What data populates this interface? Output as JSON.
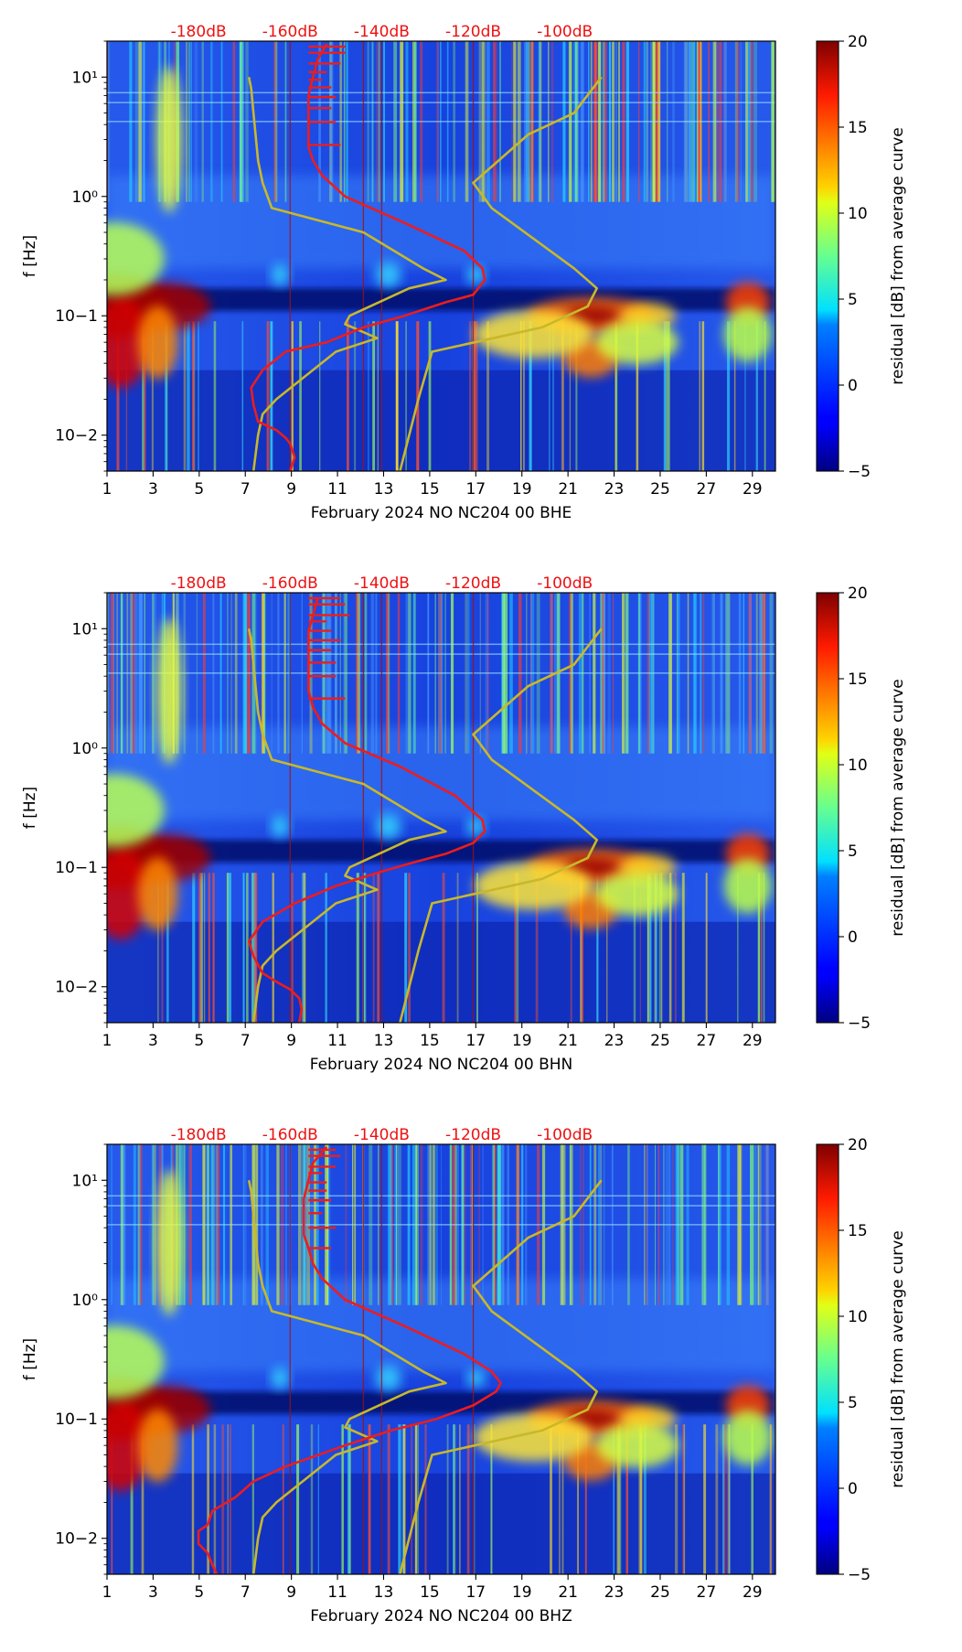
{
  "colors": {
    "median_curve": "#ee1c1c",
    "noise_model": "#c8b82a",
    "db_axis_label": "#ee1111",
    "axis": "#000000"
  },
  "chart_data": [
    {
      "type": "heatmap",
      "channel": "BHE",
      "xlabel": "February 2024 NO NC204 00 BHE",
      "ylabel": "f [Hz]",
      "x_ticks": [
        "1",
        "3",
        "5",
        "7",
        "9",
        "11",
        "13",
        "15",
        "17",
        "19",
        "21",
        "23",
        "25",
        "27",
        "29"
      ],
      "y_ticks": [
        "10−2",
        "10−1",
        "10⁰",
        "10¹"
      ],
      "xlim": [
        1,
        30
      ],
      "ylim": [
        0.005,
        20
      ],
      "yscale": "log",
      "top_ticks": [
        "-180dB",
        "-160dB",
        "-140dB",
        "-120dB",
        "-100dB"
      ],
      "colorbar": {
        "label": "residual [dB] from average curve",
        "range": [
          -5,
          20
        ],
        "ticks": [
          "20",
          "15",
          "10",
          "5",
          "0",
          "−5"
        ]
      },
      "median_curve_db": [
        [
          -160,
          0.005
        ],
        [
          -159,
          0.0065
        ],
        [
          -160,
          0.0085
        ],
        [
          -161,
          0.0095
        ],
        [
          -163,
          0.011
        ],
        [
          -167,
          0.013
        ],
        [
          -168,
          0.018
        ],
        [
          -168.5,
          0.025
        ],
        [
          -166,
          0.035
        ],
        [
          -161,
          0.05
        ],
        [
          -152,
          0.06
        ],
        [
          -144,
          0.08
        ],
        [
          -135,
          0.1
        ],
        [
          -126,
          0.13
        ],
        [
          -120,
          0.15
        ],
        [
          -117.5,
          0.2
        ],
        [
          -118,
          0.25
        ],
        [
          -122,
          0.35
        ],
        [
          -135,
          0.6
        ],
        [
          -148,
          1.0
        ],
        [
          -153,
          1.5
        ],
        [
          -155,
          2.0
        ],
        [
          -156,
          2.6
        ],
        [
          -156,
          3.5
        ],
        [
          -156,
          5.0
        ],
        [
          -156,
          7.0
        ],
        [
          -155,
          10
        ],
        [
          -154,
          14
        ],
        [
          -152,
          19
        ]
      ],
      "median_spikes": [
        [
          2.7,
          -149
        ],
        [
          4.2,
          -150
        ],
        [
          5.5,
          -151
        ],
        [
          6.8,
          -150
        ],
        [
          8.2,
          -151
        ],
        [
          9.5,
          -153
        ],
        [
          11,
          -152
        ],
        [
          13,
          -149
        ],
        [
          16,
          -148
        ],
        [
          18,
          -148
        ]
      ]
    },
    {
      "type": "heatmap",
      "channel": "BHN",
      "xlabel": "February 2024 NO NC204 00 BHN",
      "ylabel": "f [Hz]",
      "x_ticks": [
        "1",
        "3",
        "5",
        "7",
        "9",
        "11",
        "13",
        "15",
        "17",
        "19",
        "21",
        "23",
        "25",
        "27",
        "29"
      ],
      "y_ticks": [
        "10−2",
        "10−1",
        "10⁰",
        "10¹"
      ],
      "xlim": [
        1,
        30
      ],
      "ylim": [
        0.005,
        20
      ],
      "yscale": "log",
      "top_ticks": [
        "-180dB",
        "-160dB",
        "-140dB",
        "-120dB",
        "-100dB"
      ],
      "colorbar": {
        "label": "residual [dB] from average curve",
        "range": [
          -5,
          20
        ],
        "ticks": [
          "20",
          "15",
          "10",
          "5",
          "0",
          "−5"
        ]
      },
      "median_curve_db": [
        [
          -158,
          0.005
        ],
        [
          -157.5,
          0.0065
        ],
        [
          -158,
          0.008
        ],
        [
          -160,
          0.0095
        ],
        [
          -163,
          0.011
        ],
        [
          -166,
          0.013
        ],
        [
          -168,
          0.018
        ],
        [
          -169,
          0.024
        ],
        [
          -166,
          0.035
        ],
        [
          -159,
          0.05
        ],
        [
          -150,
          0.07
        ],
        [
          -141,
          0.09
        ],
        [
          -133,
          0.11
        ],
        [
          -126,
          0.13
        ],
        [
          -120,
          0.16
        ],
        [
          -117.5,
          0.2
        ],
        [
          -118,
          0.25
        ],
        [
          -124,
          0.4
        ],
        [
          -136,
          0.7
        ],
        [
          -148,
          1.1
        ],
        [
          -153,
          1.6
        ],
        [
          -155,
          2.2
        ],
        [
          -156,
          3.0
        ],
        [
          -156,
          4.5
        ],
        [
          -156,
          6.5
        ],
        [
          -156,
          9.5
        ],
        [
          -155,
          13
        ],
        [
          -154,
          18
        ]
      ],
      "median_spikes": [
        [
          2.6,
          -148
        ],
        [
          4.0,
          -150
        ],
        [
          5.2,
          -150
        ],
        [
          6.6,
          -151
        ],
        [
          8.0,
          -149
        ],
        [
          9.6,
          -151
        ],
        [
          11.5,
          -152
        ],
        [
          13,
          -147
        ],
        [
          16,
          -148
        ],
        [
          18,
          -149
        ]
      ]
    },
    {
      "type": "heatmap",
      "channel": "BHZ",
      "xlabel": "February 2024 NO NC204 00 BHZ",
      "ylabel": "f [Hz]",
      "x_ticks": [
        "1",
        "3",
        "5",
        "7",
        "9",
        "11",
        "13",
        "15",
        "17",
        "19",
        "21",
        "23",
        "25",
        "27",
        "29"
      ],
      "y_ticks": [
        "10−2",
        "10−1",
        "10⁰",
        "10¹"
      ],
      "xlim": [
        1,
        30
      ],
      "ylim": [
        0.005,
        20
      ],
      "yscale": "log",
      "top_ticks": [
        "-180dB",
        "-160dB",
        "-140dB",
        "-120dB",
        "-100dB"
      ],
      "colorbar": {
        "label": "residual [dB] from average curve",
        "range": [
          -5,
          20
        ],
        "ticks": [
          "20",
          "15",
          "10",
          "5",
          "0",
          "−5"
        ]
      },
      "median_curve_db": [
        [
          -176,
          0.005
        ],
        [
          -177,
          0.006
        ],
        [
          -178,
          0.0075
        ],
        [
          -180,
          0.009
        ],
        [
          -180,
          0.0115
        ],
        [
          -178,
          0.013
        ],
        [
          -177,
          0.017
        ],
        [
          -172,
          0.022
        ],
        [
          -168,
          0.03
        ],
        [
          -161,
          0.04
        ],
        [
          -148,
          0.06
        ],
        [
          -138,
          0.08
        ],
        [
          -128,
          0.1
        ],
        [
          -120,
          0.13
        ],
        [
          -115,
          0.17
        ],
        [
          -114,
          0.2
        ],
        [
          -116,
          0.25
        ],
        [
          -122,
          0.35
        ],
        [
          -135,
          0.6
        ],
        [
          -148,
          1.0
        ],
        [
          -153,
          1.5
        ],
        [
          -155,
          2.0
        ],
        [
          -156,
          2.7
        ],
        [
          -157,
          3.5
        ],
        [
          -157,
          5.0
        ],
        [
          -157,
          7.0
        ],
        [
          -156,
          10
        ],
        [
          -155,
          14
        ],
        [
          -152,
          19
        ]
      ],
      "median_spikes": [
        [
          2.7,
          -151
        ],
        [
          4.0,
          -150
        ],
        [
          5.3,
          -153
        ],
        [
          6.8,
          -151
        ],
        [
          8.2,
          -152
        ],
        [
          9.6,
          -152
        ],
        [
          11.5,
          -153
        ],
        [
          13,
          -150
        ],
        [
          16,
          -149
        ],
        [
          18,
          -150
        ]
      ]
    }
  ],
  "nlnm_db": [
    [
      -168,
      0.005
    ],
    [
      -167,
      0.01
    ],
    [
      -166,
      0.015
    ],
    [
      -163,
      0.02
    ],
    [
      -150,
      0.05
    ],
    [
      -141,
      0.065
    ],
    [
      -148,
      0.085
    ],
    [
      -147,
      0.1
    ],
    [
      -134,
      0.17
    ],
    [
      -126,
      0.2
    ],
    [
      -131,
      0.25
    ],
    [
      -144,
      0.5
    ],
    [
      -164,
      0.8
    ],
    [
      -166,
      1.3
    ],
    [
      -167,
      2.0
    ],
    [
      -168,
      5
    ],
    [
      -168.5,
      8
    ],
    [
      -169,
      10
    ]
  ],
  "nhnm_db": [
    [
      -136,
      0.005
    ],
    [
      -132,
      0.02
    ],
    [
      -129,
      0.05
    ],
    [
      -105,
      0.08
    ],
    [
      -95,
      0.12
    ],
    [
      -93,
      0.17
    ],
    [
      -98,
      0.25
    ],
    [
      -116,
      0.8
    ],
    [
      -120,
      1.3
    ],
    [
      -108,
      3.3
    ],
    [
      -98,
      5
    ],
    [
      -92,
      10
    ]
  ]
}
